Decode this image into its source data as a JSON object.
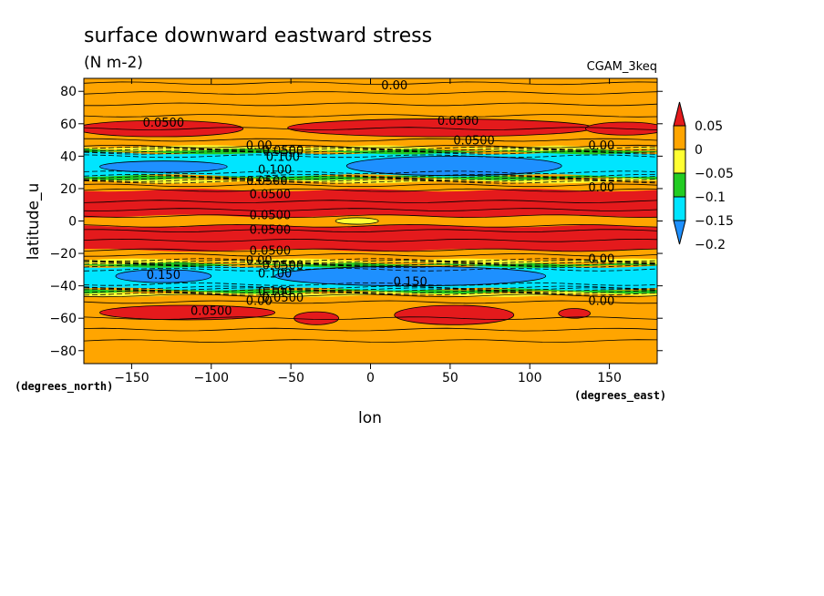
{
  "chart_data": {
    "type": "contour",
    "title": "surface downward eastward stress",
    "units": "(N m-2)",
    "run_label": "CGAM_3keq",
    "xlabel": "lon",
    "ylabel": "latitude_u",
    "x_units": "(degrees_east)",
    "y_units": "(degrees_north)",
    "xlim": [
      -180,
      180
    ],
    "ylim": [
      -88,
      88
    ],
    "x_ticks": [
      -150,
      -100,
      -50,
      0,
      50,
      100,
      150
    ],
    "y_ticks": [
      -80,
      -60,
      -40,
      -20,
      0,
      20,
      40,
      60,
      80
    ],
    "x_tick_labels": [
      "−150",
      "−100",
      "−50",
      "0",
      "50",
      "100",
      "150"
    ],
    "y_tick_labels": [
      "−80",
      "−60",
      "−40",
      "−20",
      "0",
      "20",
      "40",
      "60",
      "80"
    ],
    "colorbar": {
      "levels": [
        0.05,
        0,
        -0.05,
        -0.1,
        -0.15,
        -0.2
      ],
      "labels": [
        "0.05",
        "0",
        "−0.05",
        "−0.1",
        "−0.15",
        "−0.2"
      ],
      "colors": [
        "#e41a1c",
        "#ffa500",
        "#ffff33",
        "#22cc22",
        "#00e5ff",
        "#1e90ff"
      ]
    },
    "zonal_bands": [
      {
        "lat": [
          -88,
          -62
        ],
        "bin": "0 to 0.05"
      },
      {
        "lat": [
          -62,
          -46
        ],
        "bin": "0 to 0.05",
        "patches_over": "0.05"
      },
      {
        "lat": [
          -46,
          -44
        ],
        "bin": "-0.05 to 0"
      },
      {
        "lat": [
          -44,
          -42
        ],
        "bin": "-0.1 to -0.05"
      },
      {
        "lat": [
          -42,
          -28
        ],
        "bin": "-0.15 to -0.1",
        "patches_below": "-0.15"
      },
      {
        "lat": [
          -28,
          -26
        ],
        "bin": "-0.1 to -0.05"
      },
      {
        "lat": [
          -26,
          -24
        ],
        "bin": "-0.05 to 0"
      },
      {
        "lat": [
          -24,
          -18
        ],
        "bin": "0 to 0.05"
      },
      {
        "lat": [
          -18,
          -3
        ],
        "bin": "above 0.05"
      },
      {
        "lat": [
          -3,
          3
        ],
        "bin": "0 to 0.05",
        "patch": "-0.05 to 0"
      },
      {
        "lat": [
          3,
          19
        ],
        "bin": "above 0.05"
      },
      {
        "lat": [
          19,
          24
        ],
        "bin": "0 to 0.05"
      },
      {
        "lat": [
          24,
          26
        ],
        "bin": "-0.05 to 0"
      },
      {
        "lat": [
          26,
          28
        ],
        "bin": "-0.1 to -0.05"
      },
      {
        "lat": [
          28,
          42
        ],
        "bin": "-0.15 to -0.1",
        "patches_below": "-0.15"
      },
      {
        "lat": [
          42,
          44
        ],
        "bin": "-0.1 to -0.05"
      },
      {
        "lat": [
          44,
          46
        ],
        "bin": "-0.05 to 0"
      },
      {
        "lat": [
          46,
          88
        ],
        "bin": "0 to 0.05",
        "patches_over": "0.05"
      }
    ],
    "contour_labels": [
      {
        "text": "0.00",
        "lon": 15,
        "lat": 84
      },
      {
        "text": "0.0500",
        "lon": -130,
        "lat": 61
      },
      {
        "text": "0.0500",
        "lon": 55,
        "lat": 62
      },
      {
        "text": "0.0500",
        "lon": 65,
        "lat": 50
      },
      {
        "text": "0.00",
        "lon": -70,
        "lat": 47
      },
      {
        "text": "0.0500",
        "lon": -55,
        "lat": 44
      },
      {
        "text": "0.100",
        "lon": -55,
        "lat": 40
      },
      {
        "text": "0.00",
        "lon": 145,
        "lat": 47
      },
      {
        "text": "0.100",
        "lon": -60,
        "lat": 32
      },
      {
        "text": "0.0500",
        "lon": -65,
        "lat": 25
      },
      {
        "text": "0.0500",
        "lon": -63,
        "lat": 17
      },
      {
        "text": "0.00",
        "lon": 145,
        "lat": 21
      },
      {
        "text": "0.0500",
        "lon": -63,
        "lat": 4
      },
      {
        "text": "0.0500",
        "lon": -63,
        "lat": -5
      },
      {
        "text": "0.0500",
        "lon": -63,
        "lat": -18
      },
      {
        "text": "0.00",
        "lon": -70,
        "lat": -24
      },
      {
        "text": "0.0500",
        "lon": -55,
        "lat": -27
      },
      {
        "text": "0.00",
        "lon": 145,
        "lat": -23
      },
      {
        "text": "0.100",
        "lon": -60,
        "lat": -32
      },
      {
        "text": "0.150",
        "lon": -130,
        "lat": -33
      },
      {
        "text": "0.150",
        "lon": 25,
        "lat": -37
      },
      {
        "text": "0.100",
        "lon": -60,
        "lat": -43
      },
      {
        "text": "0.0500",
        "lon": -55,
        "lat": -47
      },
      {
        "text": "0.00",
        "lon": -70,
        "lat": -49
      },
      {
        "text": "0.00",
        "lon": 145,
        "lat": -49
      },
      {
        "text": "0.0500",
        "lon": -100,
        "lat": -55
      }
    ]
  }
}
